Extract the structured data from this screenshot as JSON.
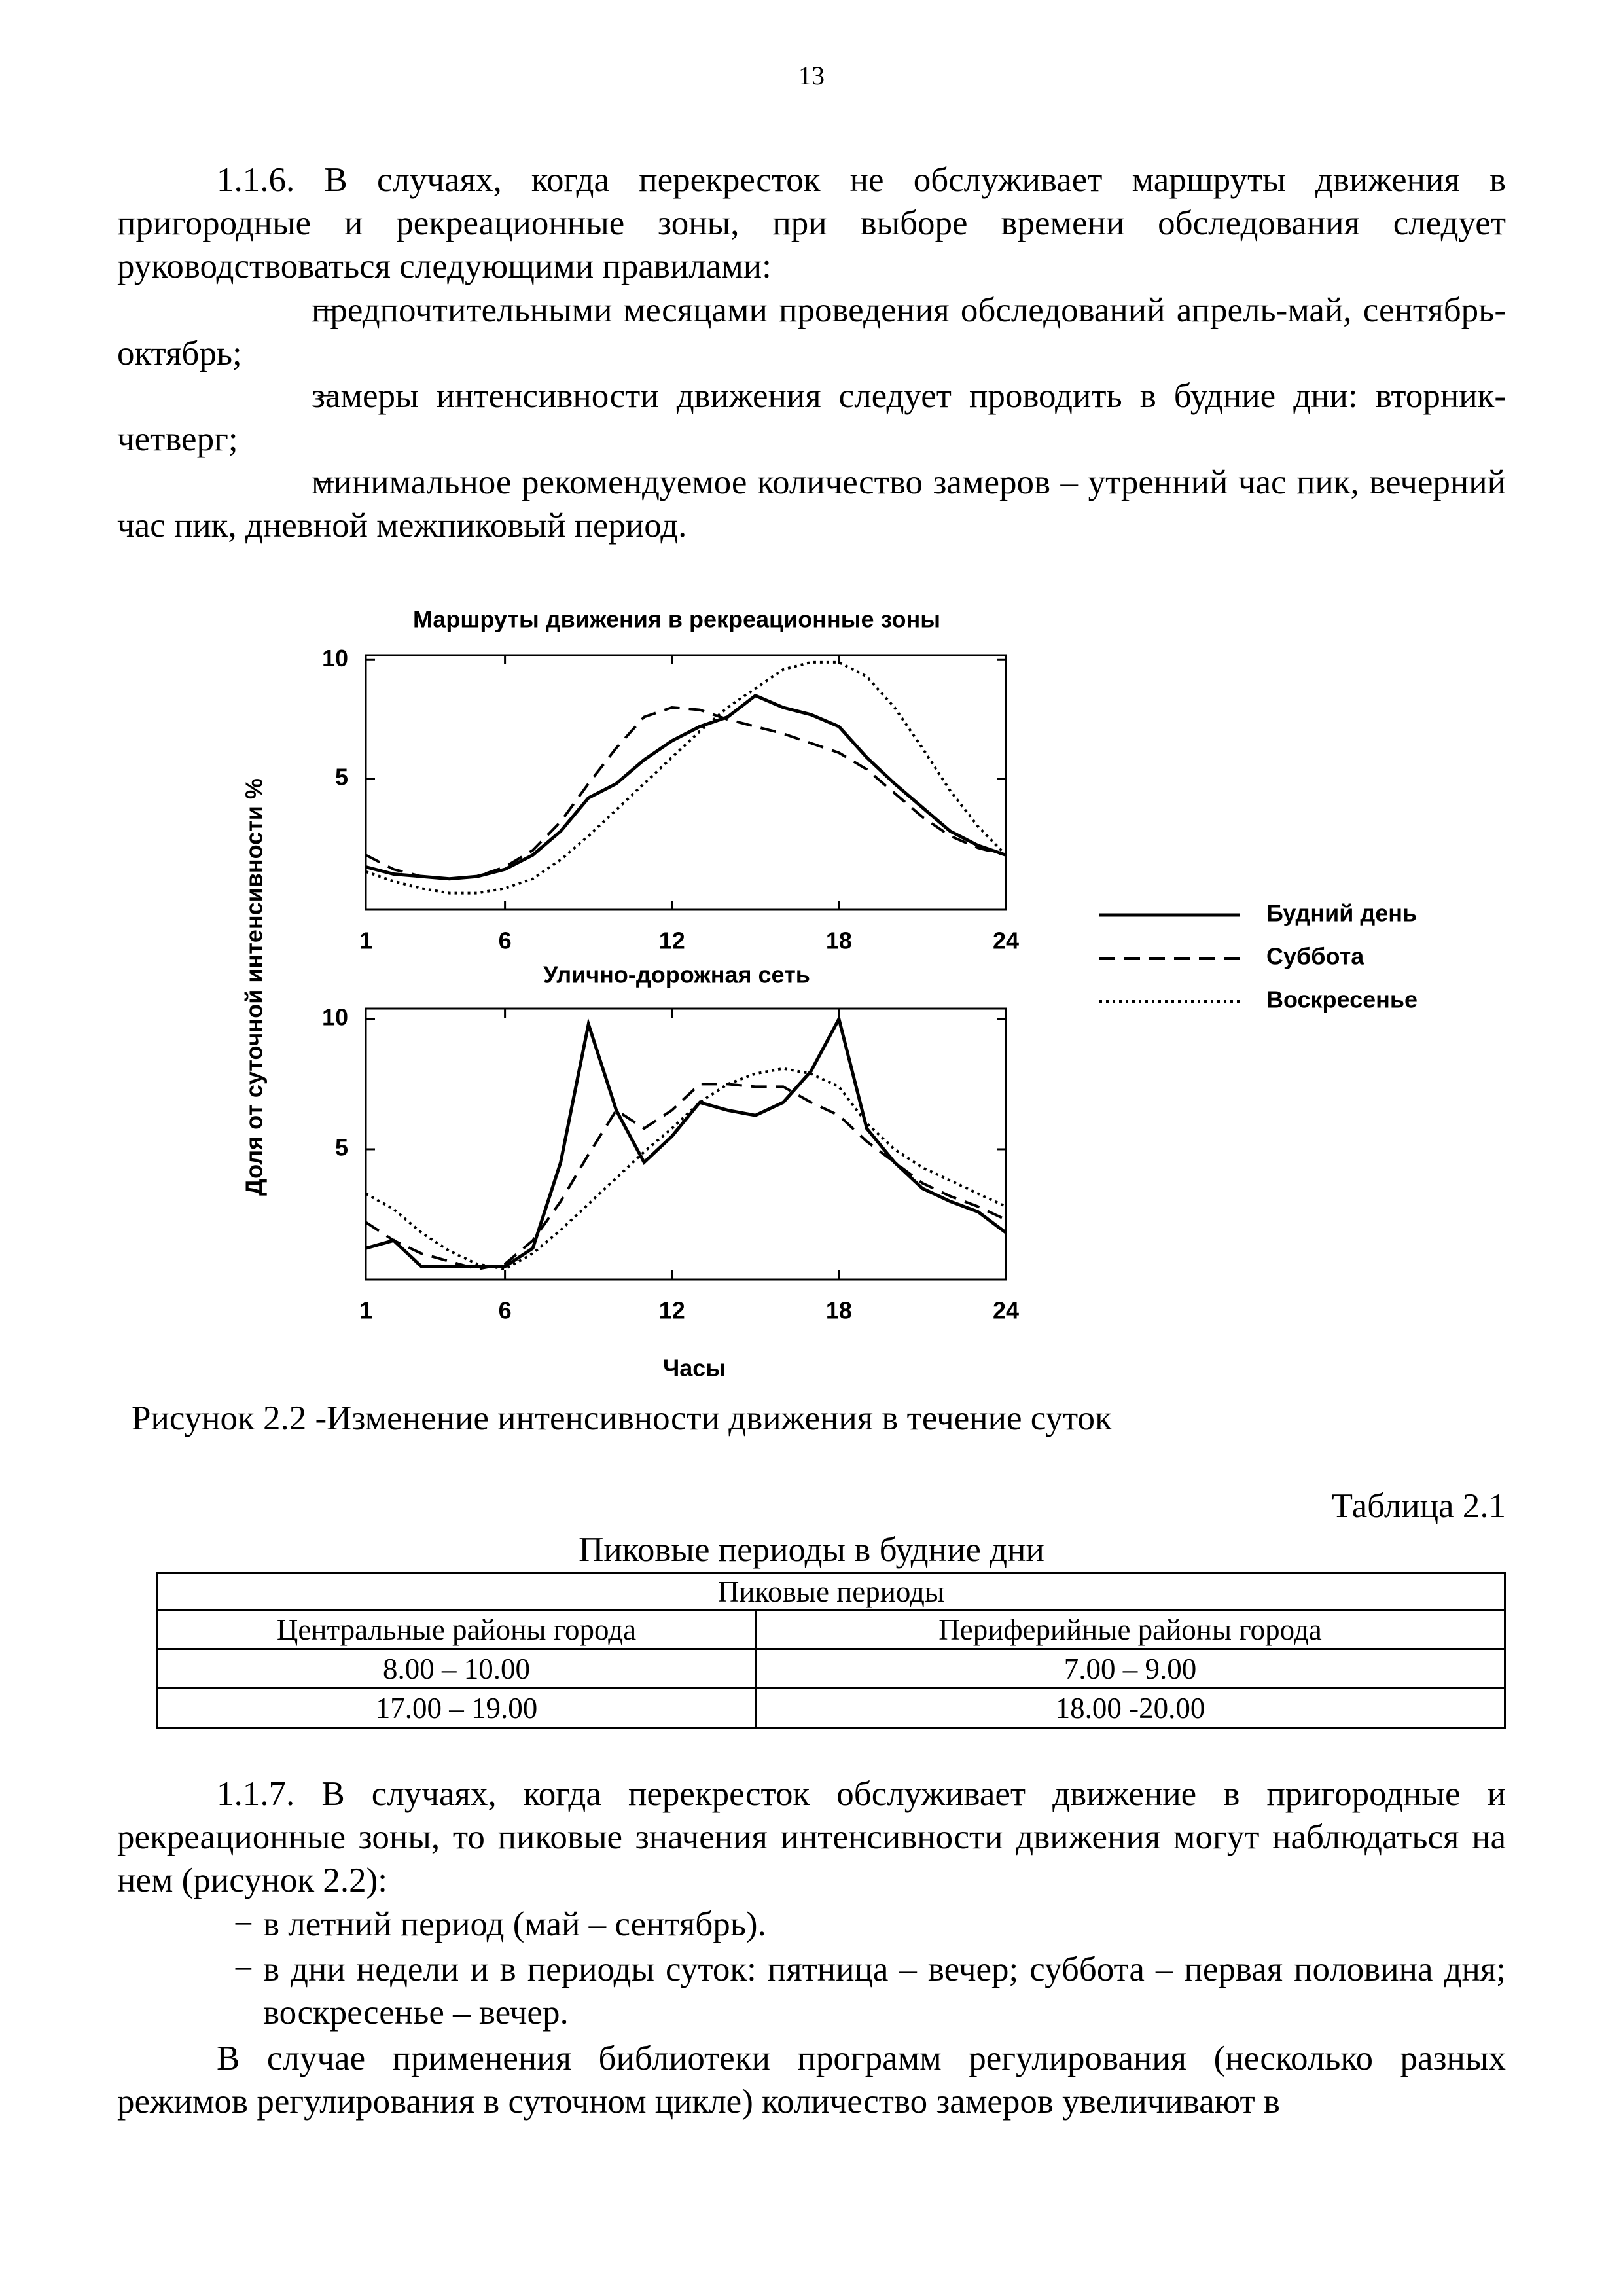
{
  "page_number": "13",
  "section_1_1_6": {
    "text": "1.1.6. В случаях, когда перекресток не обслуживает маршруты движения в пригородные и рекреационные зоны, при выборе времени обследования следует руководствоваться следующими правилами:",
    "items": [
      "предпочтительными месяцами проведения обследований апрель-май, сентябрь-октябрь;",
      "замеры интенсивности движения следует проводить в будние дни: вторник-четверг;",
      "минимальное рекомендуемое количество замеров – утренний час пик, вечерний час пик, дневной межпиковый период."
    ]
  },
  "chart_data": [
    {
      "type": "line",
      "title": "Маршруты движения в рекреационные зоны",
      "y_label": "Доля от суточной интенсивности  %",
      "x": [
        1,
        2,
        3,
        4,
        5,
        6,
        7,
        8,
        9,
        10,
        11,
        12,
        13,
        14,
        15,
        16,
        17,
        18,
        19,
        20,
        21,
        22,
        23,
        24
      ],
      "xlim": [
        1,
        24
      ],
      "xticks": [
        1,
        6,
        12,
        18,
        24
      ],
      "ylim": [
        -0.5,
        10.2
      ],
      "yticks": [
        5,
        10
      ],
      "series": [
        {
          "name": "Будний день",
          "color": "#000000",
          "dash": "solid",
          "values": [
            1.3,
            1.0,
            0.9,
            0.8,
            0.9,
            1.2,
            1.8,
            2.8,
            4.2,
            4.8,
            5.8,
            6.6,
            7.2,
            7.6,
            8.5,
            8.0,
            7.7,
            7.2,
            5.9,
            4.8,
            3.8,
            2.8,
            2.2,
            1.8
          ]
        },
        {
          "name": "Суббота",
          "color": "#000000",
          "dash": "dashed",
          "values": [
            1.8,
            1.2,
            0.9,
            0.8,
            0.9,
            1.3,
            2.0,
            3.2,
            4.8,
            6.3,
            7.6,
            8.0,
            7.9,
            7.5,
            7.2,
            6.9,
            6.5,
            6.1,
            5.4,
            4.4,
            3.4,
            2.6,
            2.1,
            1.8
          ]
        },
        {
          "name": "Воскресенье",
          "color": "#000000",
          "dash": "dotted",
          "values": [
            1.1,
            0.7,
            0.4,
            0.2,
            0.2,
            0.4,
            0.8,
            1.6,
            2.6,
            3.7,
            4.8,
            5.9,
            7.0,
            8.0,
            8.8,
            9.6,
            9.9,
            9.9,
            9.3,
            8.0,
            6.3,
            4.5,
            3.0,
            1.8
          ]
        }
      ]
    },
    {
      "type": "line",
      "title": "Улично-дорожная сеть",
      "x_label": "Часы",
      "x": [
        1,
        2,
        3,
        4,
        5,
        6,
        7,
        8,
        9,
        10,
        11,
        12,
        13,
        14,
        15,
        16,
        17,
        18,
        19,
        20,
        21,
        22,
        23,
        24
      ],
      "xlim": [
        1,
        24
      ],
      "xticks": [
        1,
        6,
        12,
        18,
        24
      ],
      "ylim": [
        0,
        10.4
      ],
      "yticks": [
        5,
        10
      ],
      "series": [
        {
          "color": "#000000",
          "dash": "solid",
          "values": [
            1.2,
            1.5,
            0.5,
            0.5,
            0.5,
            0.5,
            1.2,
            4.5,
            9.8,
            6.5,
            4.5,
            5.5,
            6.8,
            6.5,
            6.3,
            6.8,
            8.0,
            10.0,
            5.8,
            4.5,
            3.5,
            3.0,
            2.6,
            1.8
          ]
        },
        {
          "color": "#000000",
          "dash": "dashed",
          "values": [
            2.2,
            1.5,
            1.0,
            0.7,
            0.4,
            0.6,
            1.5,
            3.0,
            4.8,
            6.5,
            5.8,
            6.5,
            7.5,
            7.5,
            7.4,
            7.4,
            6.8,
            6.3,
            5.3,
            4.5,
            3.7,
            3.2,
            2.8,
            2.3
          ]
        },
        {
          "color": "#000000",
          "dash": "dotted",
          "values": [
            3.3,
            2.7,
            1.8,
            1.1,
            0.6,
            0.4,
            1.0,
            1.9,
            2.9,
            3.9,
            4.9,
            5.8,
            6.8,
            7.5,
            7.9,
            8.1,
            7.9,
            7.4,
            6.0,
            5.0,
            4.3,
            3.8,
            3.3,
            2.8
          ]
        }
      ]
    }
  ],
  "figure_caption": "Рисунок 2.2 -Изменение интенсивности движения в течение суток",
  "table": {
    "number": "Таблица 2.1",
    "title": "Пиковые периоды в будние дни",
    "header": "Пиковые периоды",
    "columns": [
      "Центральные районы города",
      "Периферийные районы города"
    ],
    "rows": [
      [
        "8.00 – 10.00",
        "7.00 – 9.00"
      ],
      [
        "17.00 – 19.00",
        "18.00 -20.00"
      ]
    ]
  },
  "section_1_1_7": {
    "text": "1.1.7. В случаях, когда перекресток обслуживает движение в пригородные и рекреационные зоны, то пиковые значения интенсивности движения могут наблюдаться на нем (рисунок 2.2):",
    "items": [
      "в летний период (май – сентябрь).",
      "в дни недели и в периоды суток: пятница – вечер; суббота – первая половина дня; воскресенье – вечер."
    ]
  },
  "closing_paragraph": "В случае применения библиотеки программ регулирования (несколько разных режимов регулирования в суточном цикле) количество замеров увеличивают в"
}
